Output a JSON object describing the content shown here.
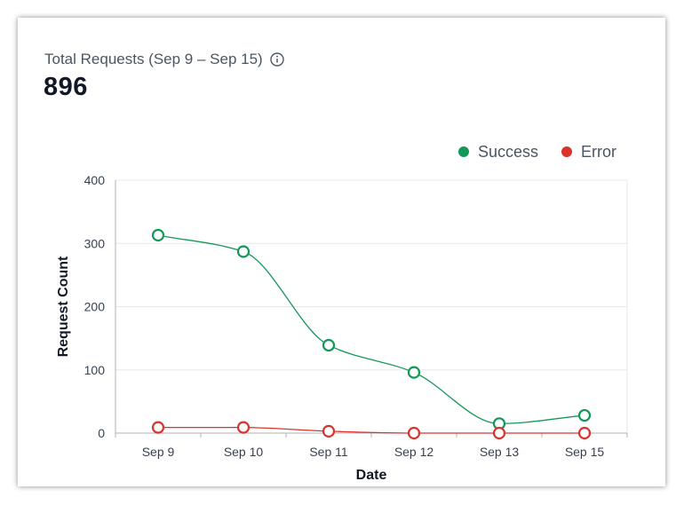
{
  "header": {
    "title": "Total Requests (Sep 9 – Sep 15)",
    "total": "896"
  },
  "colors": {
    "success": "#16975a",
    "error": "#d9342b",
    "grid": "#e8e8e8",
    "axis": "#b0b0b0"
  },
  "chart_data": {
    "type": "line",
    "categories": [
      "Sep 9",
      "Sep 10",
      "Sep 11",
      "Sep 12",
      "Sep 13",
      "Sep 15"
    ],
    "series": [
      {
        "name": "Success",
        "values": [
          313,
          287,
          139,
          96,
          15,
          28
        ]
      },
      {
        "name": "Error",
        "values": [
          9,
          9,
          3,
          0,
          0,
          0
        ]
      }
    ],
    "xlabel": "Date",
    "ylabel": "Request Count",
    "ylim": [
      0,
      400
    ],
    "yticks": [
      0,
      100,
      200,
      300,
      400
    ],
    "legend": "top-right",
    "grid": true
  }
}
